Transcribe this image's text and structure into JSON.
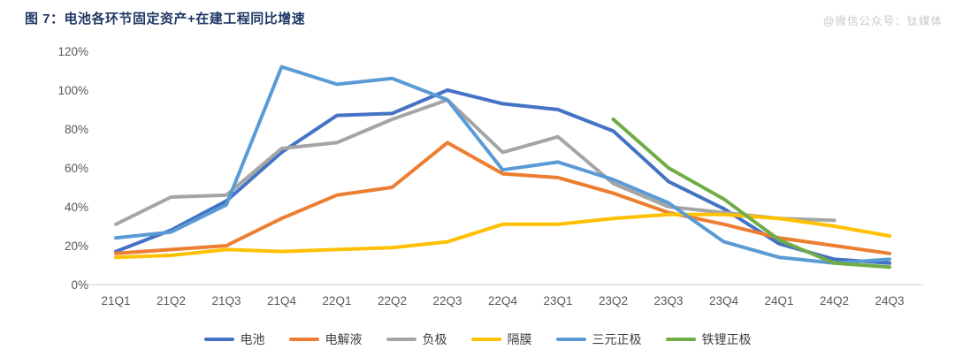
{
  "header": {
    "title": "图 7：电池各环节固定资产+在建工程同比增速"
  },
  "watermark": "@微信公众号：钛媒体",
  "chart_data": {
    "type": "line",
    "title": "电池各环节固定资产+在建工程同比增速",
    "categories": [
      "21Q1",
      "21Q2",
      "21Q3",
      "21Q4",
      "22Q1",
      "22Q2",
      "22Q3",
      "22Q4",
      "23Q1",
      "23Q2",
      "23Q3",
      "23Q4",
      "24Q1",
      "24Q2",
      "24Q3"
    ],
    "series": [
      {
        "name": "电池",
        "color": "#4472C4",
        "values": [
          17,
          28,
          43,
          68,
          87,
          88,
          100,
          93,
          90,
          79,
          53,
          39,
          21,
          13,
          11
        ]
      },
      {
        "name": "电解液",
        "color": "#ED7D31",
        "values": [
          16,
          18,
          20,
          34,
          46,
          50,
          73,
          57,
          55,
          47,
          37,
          31,
          24,
          20,
          16
        ]
      },
      {
        "name": "负极",
        "color": "#A5A5A5",
        "values": [
          31,
          45,
          46,
          70,
          73,
          85,
          95,
          68,
          76,
          52,
          40,
          37,
          34,
          33,
          null
        ]
      },
      {
        "name": "隔膜",
        "color": "#FFC000",
        "values": [
          14,
          15,
          18,
          17,
          18,
          19,
          22,
          31,
          31,
          34,
          36,
          36,
          34,
          30,
          25
        ]
      },
      {
        "name": "三元正极",
        "color": "#5B9BD5",
        "values": [
          24,
          27,
          41,
          112,
          103,
          106,
          95,
          59,
          63,
          54,
          42,
          22,
          14,
          11,
          13
        ]
      },
      {
        "name": "铁锂正极",
        "color": "#70AD47",
        "values": [
          null,
          null,
          null,
          null,
          null,
          null,
          null,
          null,
          null,
          85,
          60,
          44,
          23,
          11,
          9
        ]
      }
    ],
    "xlabel": "",
    "ylabel": "",
    "ylim": [
      0,
      120
    ],
    "y_tick_values": [
      0,
      20,
      40,
      60,
      80,
      100,
      120
    ],
    "y_tick_labels": [
      "0%",
      "20%",
      "40%",
      "60%",
      "80%",
      "100%",
      "120%"
    ],
    "grid": false,
    "legend_position": "bottom",
    "axis_text_color": "#595959",
    "axis_line_color": "#D9D9D9"
  }
}
